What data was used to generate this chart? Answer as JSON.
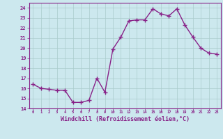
{
  "x": [
    0,
    1,
    2,
    3,
    4,
    5,
    6,
    7,
    8,
    9,
    10,
    11,
    12,
    13,
    14,
    15,
    16,
    17,
    18,
    19,
    20,
    21,
    22,
    23
  ],
  "y": [
    16.4,
    16.0,
    15.9,
    15.8,
    15.8,
    14.6,
    14.6,
    14.8,
    17.0,
    15.6,
    19.9,
    21.1,
    22.7,
    22.8,
    22.8,
    23.9,
    23.4,
    23.2,
    23.9,
    22.3,
    21.1,
    20.0,
    19.5,
    19.4
  ],
  "line_color": "#882288",
  "marker": "+",
  "marker_size": 4,
  "linewidth": 1.0,
  "xlabel": "Windchill (Refroidissement éolien,°C)",
  "xlabel_fontsize": 6,
  "ytick_labels": [
    "14",
    "15",
    "16",
    "17",
    "18",
    "19",
    "20",
    "21",
    "22",
    "23",
    "24"
  ],
  "ytick_vals": [
    14,
    15,
    16,
    17,
    18,
    19,
    20,
    21,
    22,
    23,
    24
  ],
  "xtick_labels": [
    "0",
    "1",
    "2",
    "3",
    "4",
    "5",
    "6",
    "7",
    "8",
    "9",
    "10",
    "11",
    "12",
    "13",
    "14",
    "15",
    "16",
    "17",
    "18",
    "19",
    "20",
    "21",
    "22",
    "23"
  ],
  "xlim": [
    -0.5,
    23.5
  ],
  "ylim": [
    14,
    24.5
  ],
  "bg_color": "#cce8ee",
  "grid_color": "#aacccc",
  "tick_color": "#882288",
  "label_color": "#882288"
}
